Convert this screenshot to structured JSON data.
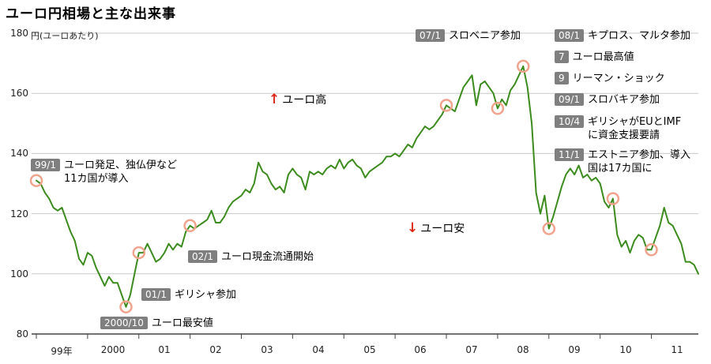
{
  "title": "ユーロ円相場と主な出来事",
  "y_axis_unit": "円(ユーロあたり)",
  "annotations": {
    "trend_up": {
      "arrow": "↑",
      "label": "ユーロ高"
    },
    "trend_down": {
      "arrow": "↓",
      "label": "ユーロ安"
    },
    "events": [
      {
        "badge": "99/1",
        "lines": [
          "ユーロ発足、独仏伊など",
          "11カ国が導入"
        ]
      },
      {
        "badge": "2000/10",
        "lines": [
          "ユーロ最安値"
        ]
      },
      {
        "badge": "01/1",
        "lines": [
          "ギリシャ参加"
        ]
      },
      {
        "badge": "02/1",
        "lines": [
          "ユーロ現金流通開始"
        ]
      },
      {
        "badge": "07/1",
        "lines": [
          "スロベニア参加"
        ]
      },
      {
        "badge": "08/1",
        "lines": [
          "キプロス、マルタ参加"
        ]
      },
      {
        "badge": "7",
        "lines": [
          "ユーロ最高値"
        ]
      },
      {
        "badge": "9",
        "lines": [
          "リーマン・ショック"
        ]
      },
      {
        "badge": "09/1",
        "lines": [
          "スロバキア参加"
        ]
      },
      {
        "badge": "10/4",
        "lines": [
          "ギリシャがEUとIMF",
          "に資金支援要請"
        ]
      },
      {
        "badge": "11/1",
        "lines": [
          "エストニア参加、導入",
          "国は17カ国に"
        ]
      }
    ]
  },
  "chart_data": {
    "type": "line",
    "title": "ユーロ円相場と主な出来事",
    "ylabel": "円(ユーロあたり)",
    "ylim": [
      80,
      180
    ],
    "y_ticks": [
      180,
      160,
      140,
      120,
      100,
      80
    ],
    "x_tick_labels": [
      "99年",
      "2000",
      "01",
      "02",
      "03",
      "04",
      "05",
      "06",
      "07",
      "08",
      "09",
      "10",
      "11"
    ],
    "x_start": "1999-01",
    "x_end": "2011-12",
    "frequency": "monthly",
    "line_color": "#3c8b1e",
    "highlight_ring_color": "#f0a38d",
    "values": [
      131,
      130,
      127,
      125,
      122,
      121,
      122,
      118,
      114,
      111,
      105,
      103,
      107,
      106,
      102,
      99,
      96,
      99,
      97,
      97,
      93,
      89,
      93,
      100,
      107,
      107,
      110,
      107,
      104,
      105,
      107,
      110,
      108,
      110,
      109,
      114,
      116,
      115,
      116,
      117,
      118,
      121,
      117,
      117,
      119,
      122,
      124,
      125,
      126,
      128,
      127,
      130,
      137,
      134,
      133,
      130,
      128,
      129,
      127,
      133,
      135,
      133,
      132,
      128,
      134,
      133,
      134,
      133,
      135,
      136,
      135,
      138,
      135,
      137,
      138,
      136,
      135,
      132,
      134,
      135,
      136,
      137,
      139,
      139,
      140,
      139,
      141,
      143,
      142,
      145,
      147,
      149,
      148,
      149,
      151,
      153,
      156,
      155,
      154,
      158,
      162,
      164,
      166,
      156,
      163,
      164,
      162,
      160,
      155,
      158,
      156,
      161,
      163,
      166,
      169,
      162,
      150,
      127,
      120,
      126,
      115,
      119,
      124,
      129,
      133,
      135,
      133,
      136,
      132,
      133,
      131,
      132,
      130,
      124,
      122,
      125,
      113,
      109,
      111,
      107,
      111,
      113,
      112,
      108,
      108,
      112,
      116,
      122,
      117,
      116,
      113,
      110,
      104,
      104,
      103,
      100
    ],
    "highlighted_points": [
      {
        "date": "1999-01",
        "value": 131,
        "event": "ユーロ発足、独仏伊など11カ国が導入"
      },
      {
        "date": "2000-10",
        "value": 89,
        "event": "ユーロ最安値"
      },
      {
        "date": "2001-01",
        "value": 107,
        "event": "ギリシャ参加"
      },
      {
        "date": "2002-01",
        "value": 116,
        "event": "ユーロ現金流通開始"
      },
      {
        "date": "2007-01",
        "value": 156,
        "event": "スロベニア参加"
      },
      {
        "date": "2008-01",
        "value": 155,
        "event": "キプロス、マルタ参加"
      },
      {
        "date": "2008-07",
        "value": 169,
        "event": "ユーロ最高値"
      },
      {
        "date": "2009-01",
        "value": 115,
        "event": "スロバキア参加"
      },
      {
        "date": "2010-04",
        "value": 125,
        "event": "ギリシャがEUとIMFに資金支援要請"
      },
      {
        "date": "2011-01",
        "value": 108,
        "event": "エストニア参加、導入国は17カ国に"
      }
    ]
  }
}
